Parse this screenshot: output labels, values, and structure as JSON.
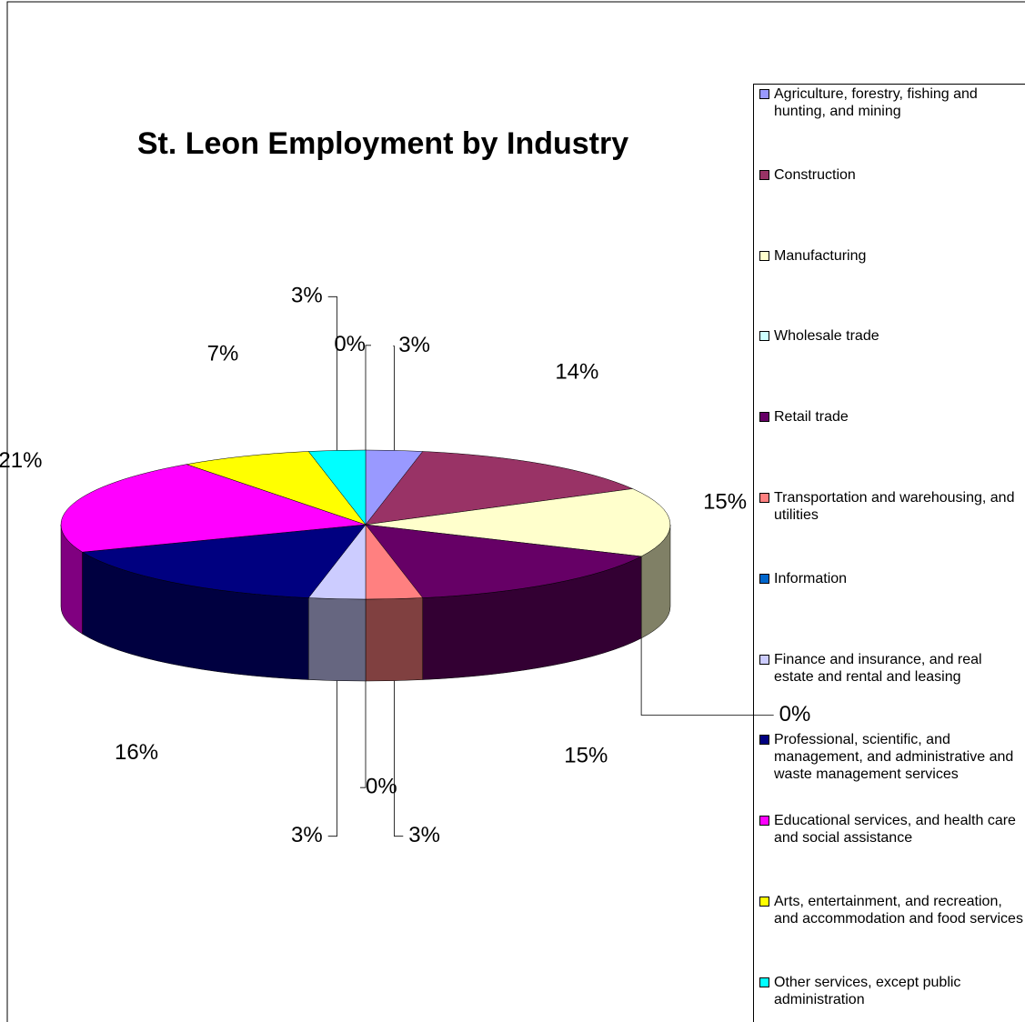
{
  "chart_data": {
    "type": "pie3d",
    "title": "St. Leon Employment by Industry",
    "categories": [
      "Agriculture, forestry, fishing and hunting, and mining",
      "Construction",
      "Manufacturing",
      "Wholesale trade",
      "Retail trade",
      "Transportation and warehousing, and utilities",
      "Information",
      "Finance and insurance, and real estate and rental and leasing",
      "Professional, scientific, and management, and administrative and waste management services",
      "Educational services, and health care and social assistance",
      "Arts, entertainment, and recreation, and accommodation and food services",
      "Other services, except public administration",
      null
    ],
    "values": [
      3,
      14,
      15,
      0,
      15,
      3,
      0,
      3,
      16,
      21,
      7,
      3,
      0
    ],
    "value_labels": [
      "3%",
      "14%",
      "15%",
      "0%",
      "15%",
      "3%",
      "0%",
      "3%",
      "16%",
      "21%",
      "7%",
      "3%",
      "0%"
    ],
    "colors": [
      "#9999ff",
      "#993366",
      "#ffffcc",
      "#ccffff",
      "#660066",
      "#ff8080",
      "#0066cc",
      "#ccccff",
      "#000080",
      "#ff00ff",
      "#ffff00",
      "#00ffff",
      null
    ],
    "legend": "right"
  }
}
